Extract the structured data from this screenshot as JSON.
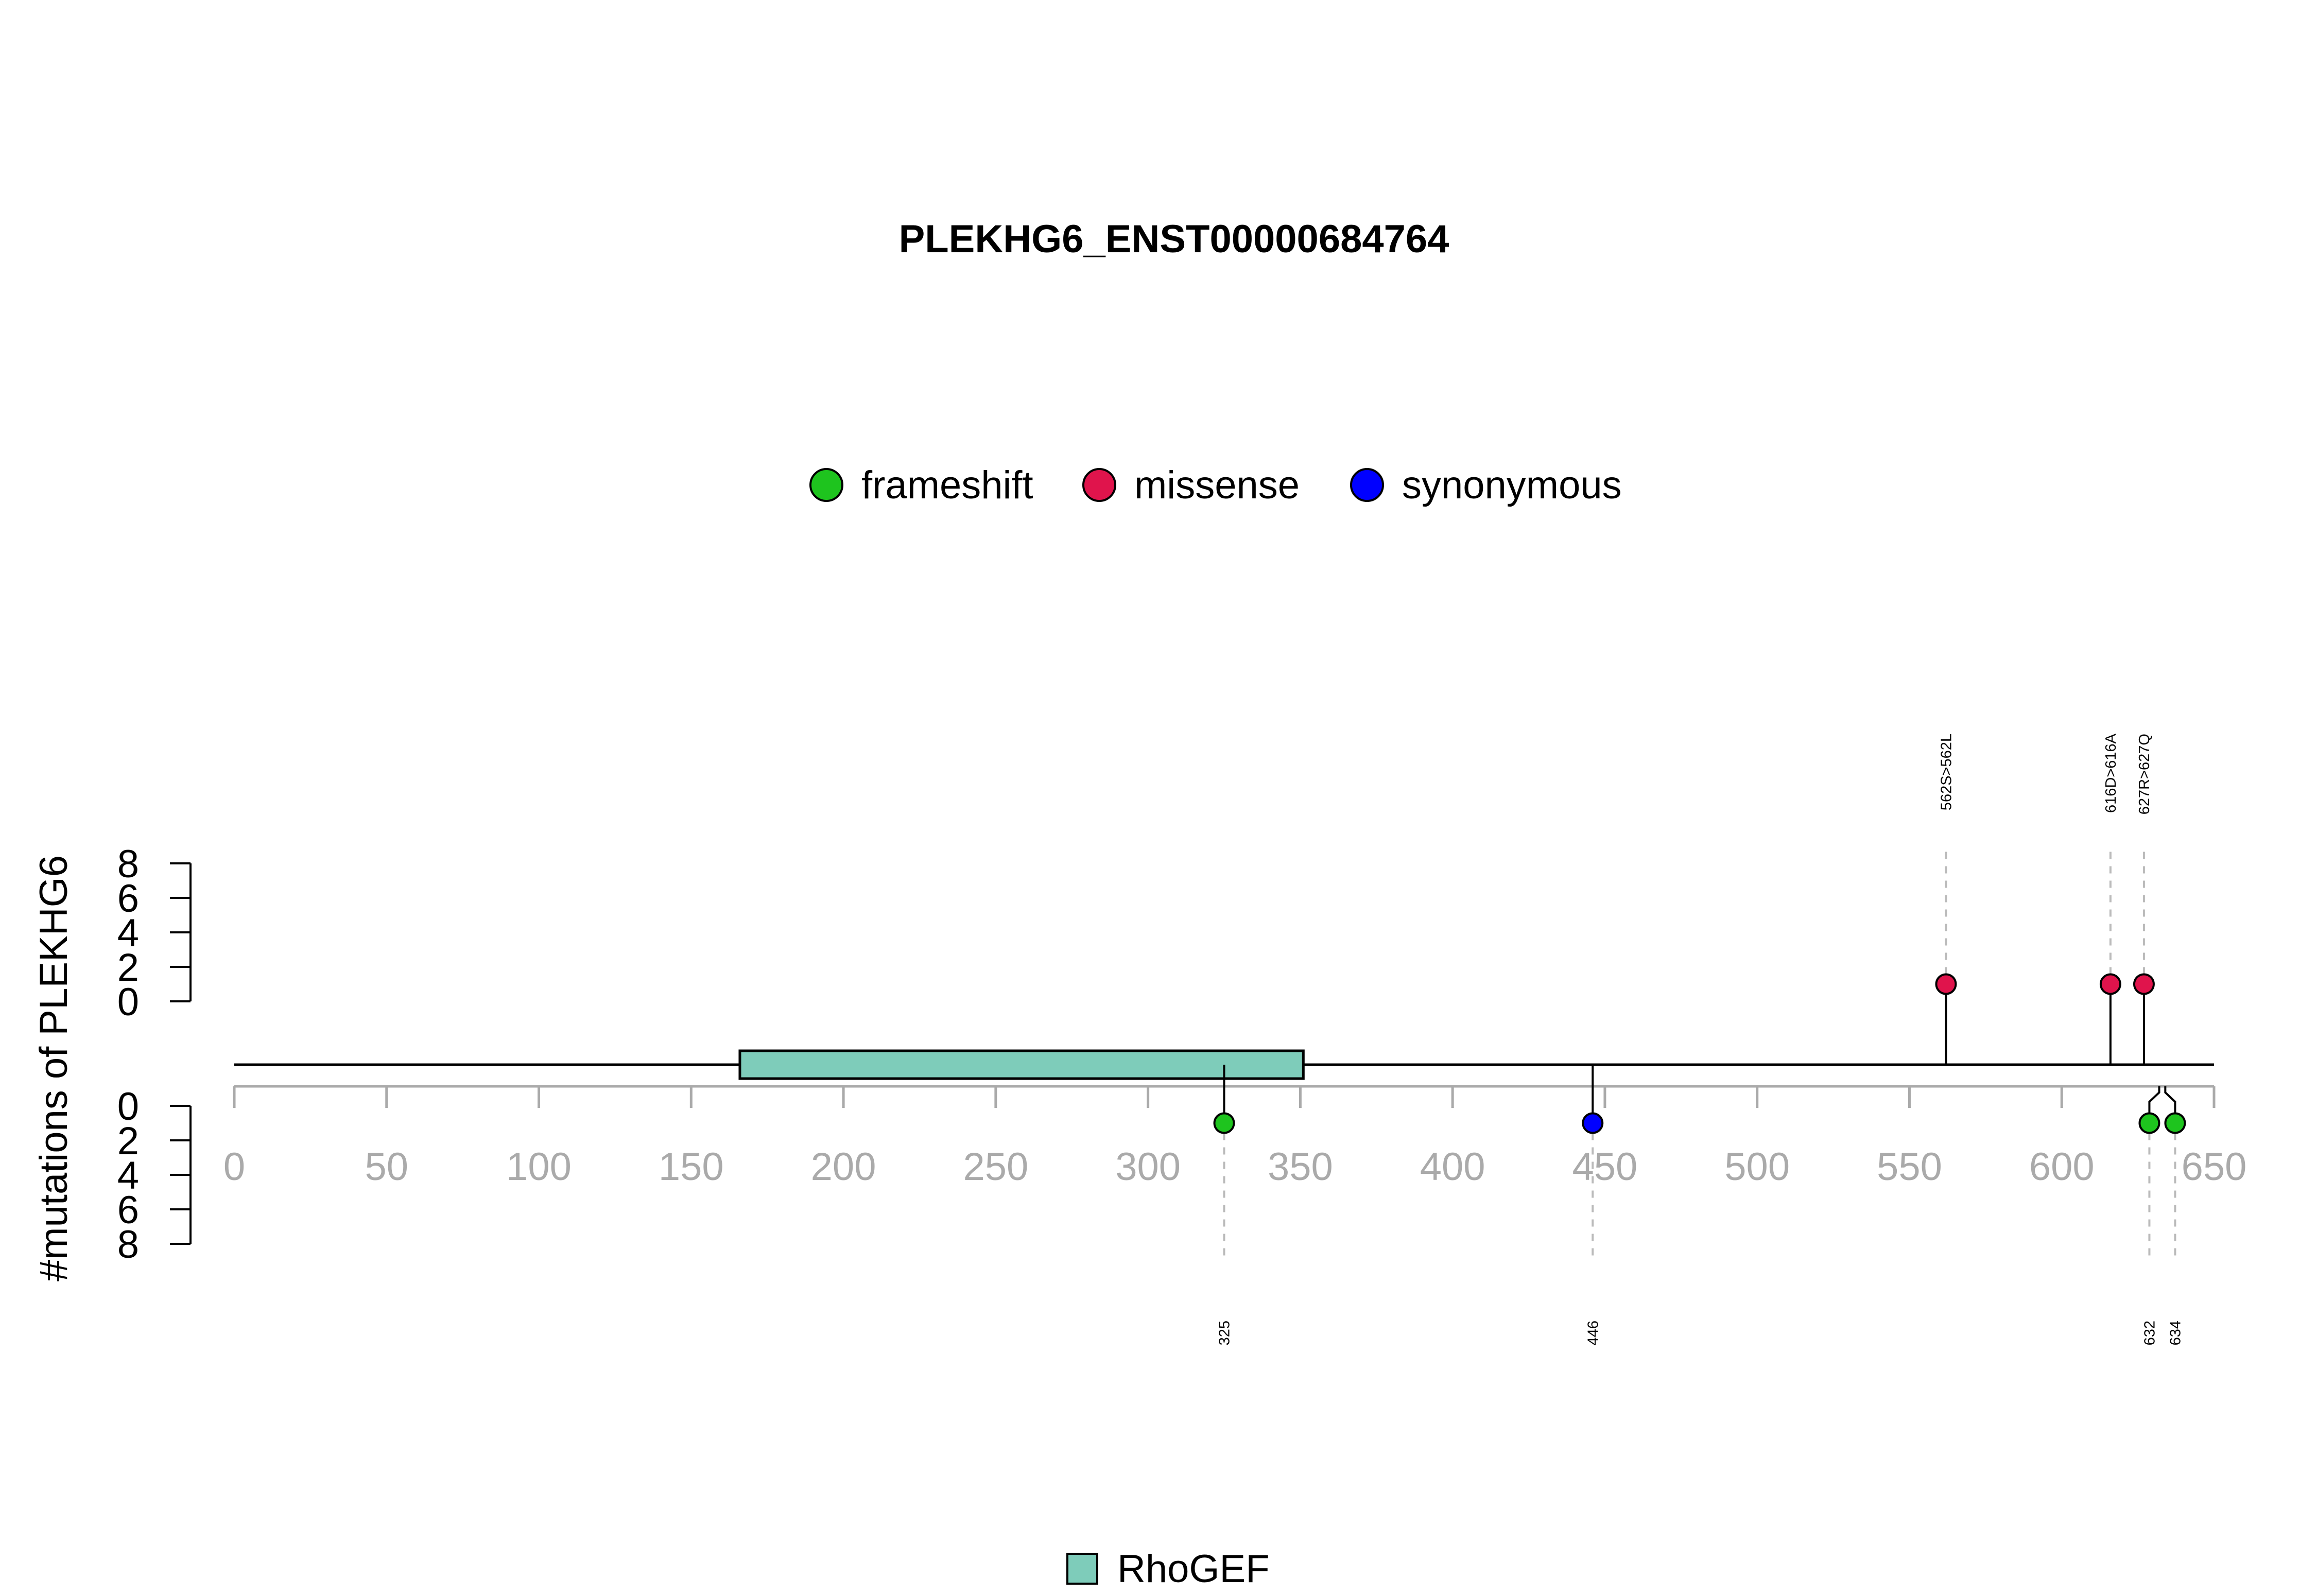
{
  "chart_data": {
    "type": "lollipop",
    "title": "PLEKHG6_ENST00000684764",
    "ylabel": "#mutations of PLEKHG6",
    "xlim": [
      0,
      650
    ],
    "x_ticks": [
      0,
      50,
      100,
      150,
      200,
      250,
      300,
      350,
      400,
      450,
      500,
      550,
      600,
      650
    ],
    "y_ticks_upper": [
      0,
      2,
      4,
      6,
      8
    ],
    "y_ticks_lower": [
      0,
      2,
      4,
      6,
      8
    ],
    "ylim": [
      0,
      8
    ],
    "protein_length": 650,
    "legend": [
      {
        "label": "frameshift",
        "color": "#1EC41E"
      },
      {
        "label": "missense",
        "color": "#E0144C"
      },
      {
        "label": "synonymous",
        "color": "#0000FF"
      }
    ],
    "domains": [
      {
        "name": "RhoGEF",
        "start": 166,
        "end": 351,
        "color": "#7ECCBA"
      }
    ],
    "domain_legend": [
      {
        "label": "RhoGEF",
        "color": "#7ECCBA"
      }
    ],
    "upper_mutations": [
      {
        "position": 562,
        "count": 1,
        "type": "missense",
        "label": "562S>562L"
      },
      {
        "position": 616,
        "count": 1,
        "type": "missense",
        "label": "616D>616A"
      },
      {
        "position": 627,
        "count": 1,
        "type": "missense",
        "label": "627R>627Q"
      }
    ],
    "lower_mutations": [
      {
        "position": 325,
        "count": 1,
        "type": "frameshift",
        "label": "325"
      },
      {
        "position": 446,
        "count": 1,
        "type": "synonymous",
        "label": "446"
      },
      {
        "position": 632,
        "count": 1,
        "type": "frameshift",
        "label": "632"
      },
      {
        "position": 634,
        "count": 1,
        "type": "frameshift",
        "label": "634"
      }
    ]
  }
}
